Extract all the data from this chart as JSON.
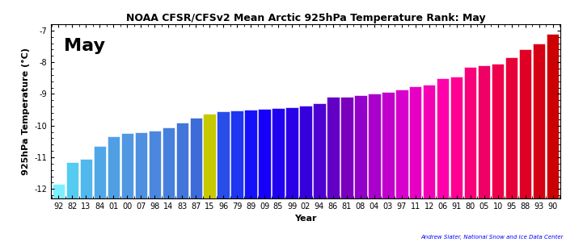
{
  "title": "NOAA CFSR/CFSv2 Mean Arctic 925hPa Temperature Rank: May",
  "ylabel": "925hPa Temperature (°C)",
  "xlabel": "Year",
  "month_label": "May",
  "attribution": "Andrew Slater, National Snow and Ice Data Center",
  "ylim": [
    -12.3,
    -6.8
  ],
  "yticks": [
    -12,
    -11,
    -10,
    -9,
    -8,
    -7
  ],
  "years": [
    "92",
    "82",
    "13",
    "84",
    "01",
    "00",
    "07",
    "98",
    "14",
    "83",
    "87",
    "15",
    "96",
    "79",
    "89",
    "09",
    "85",
    "99",
    "02",
    "94",
    "86",
    "81",
    "08",
    "04",
    "03",
    "97",
    "11",
    "12",
    "06",
    "91",
    "80",
    "05",
    "10",
    "95",
    "88",
    "93",
    "90"
  ],
  "values": [
    -11.85,
    -11.15,
    -11.05,
    -10.65,
    -10.35,
    -10.25,
    -10.2,
    -10.15,
    -10.05,
    -9.9,
    -9.75,
    -9.62,
    -9.55,
    -9.52,
    -9.5,
    -9.48,
    -9.45,
    -9.42,
    -9.38,
    -9.3,
    -9.1,
    -9.08,
    -9.05,
    -9.0,
    -8.95,
    -8.85,
    -8.75,
    -8.7,
    -8.5,
    -8.45,
    -8.15,
    -8.1,
    -8.05,
    -7.85,
    -7.6,
    -7.4,
    -7.1
  ],
  "yellow_index": 11,
  "background_color": "#ffffff",
  "title_fontsize": 9,
  "label_fontsize": 8,
  "tick_fontsize": 7,
  "month_fontsize": 16
}
